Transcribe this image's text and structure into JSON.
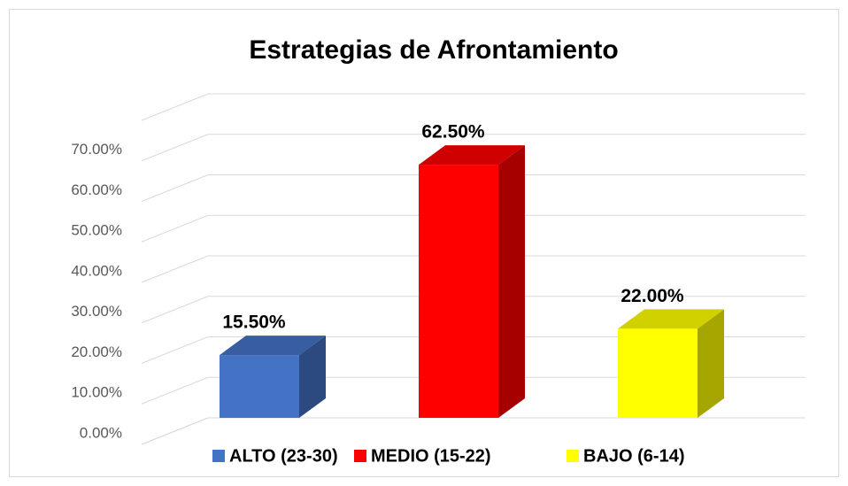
{
  "chart_data": {
    "type": "bar3d",
    "title": "Estrategias de Afrontamiento",
    "categories": [
      "ALTO (23-30)",
      "MEDIO (15-22)",
      "BAJO (6-14)"
    ],
    "values": [
      15.5,
      62.5,
      22
    ],
    "value_labels": [
      "15.50%",
      "62.50%",
      "22.00%"
    ],
    "colors": [
      "#4472c4",
      "#ff0000",
      "#ffff00"
    ],
    "ylim": [
      0,
      80
    ],
    "yticks": [
      {
        "value": 0,
        "label": "0.00%"
      },
      {
        "value": 10,
        "label": "10.00%"
      },
      {
        "value": 20,
        "label": "20.00%"
      },
      {
        "value": 30,
        "label": "30.00%"
      },
      {
        "value": 40,
        "label": "40.00%"
      },
      {
        "value": 50,
        "label": "50.00%"
      },
      {
        "value": 60,
        "label": "60.00%"
      },
      {
        "value": 70,
        "label": "70.00%"
      }
    ],
    "grid": true,
    "legend": "bottom"
  }
}
